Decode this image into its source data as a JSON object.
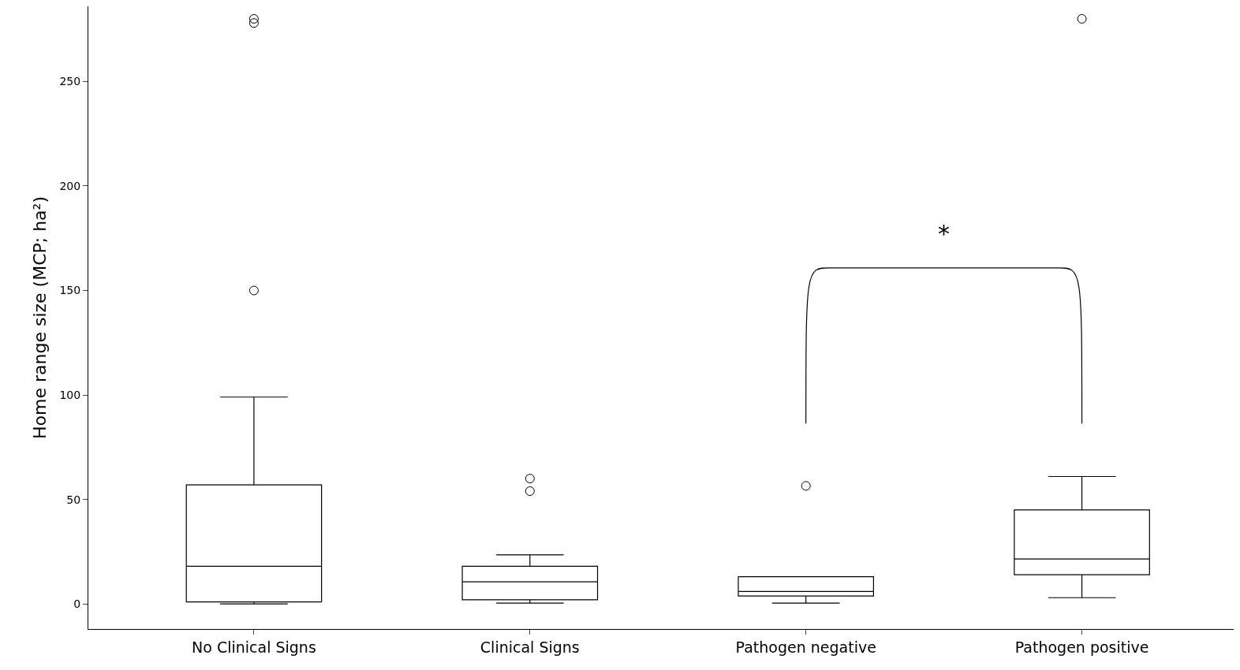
{
  "chart_data": {
    "type": "box",
    "ylabel": "Home range size (MCP; ha²)",
    "categories": [
      "No Clinical Signs",
      "Clinical Signs",
      "Pathogen negative",
      "Pathogen positive"
    ],
    "boxes": [
      {
        "low": 0,
        "q1": 1,
        "median": 18,
        "q3": 57,
        "high": 99,
        "outliers": [
          150,
          278,
          280
        ]
      },
      {
        "low": 0.4,
        "q1": 2,
        "median": 10.6,
        "q3": 18,
        "high": 23.5,
        "outliers": [
          54,
          60
        ]
      },
      {
        "low": 0.4,
        "q1": 3.8,
        "median": 6,
        "q3": 13,
        "high": 13,
        "outliers": [
          56.5
        ]
      },
      {
        "low": 3,
        "q1": 14,
        "median": 21.5,
        "q3": 45,
        "high": 61,
        "outliers": [
          280
        ]
      }
    ],
    "color": "#000000",
    "ylim": [
      -12,
      286
    ],
    "yticks": [
      0,
      50,
      100,
      150,
      200,
      250
    ],
    "annotations": [
      "*"
    ]
  }
}
